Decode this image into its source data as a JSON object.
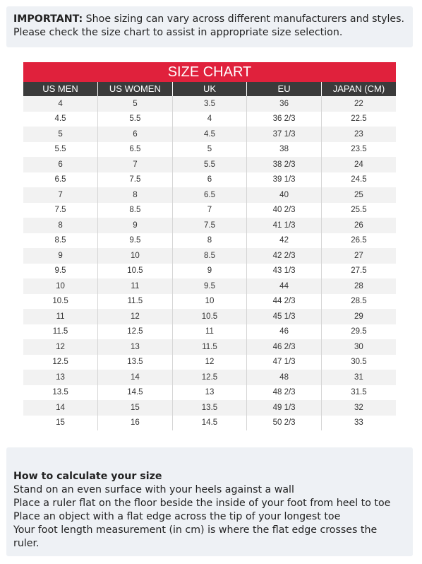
{
  "notice": {
    "lead": "IMPORTANT:",
    "text": " Shoe sizing can vary across different manufacturers and styles. Please check the size chart to assist in appropriate size selection."
  },
  "chart": {
    "title": "SIZE CHART",
    "accent_color": "#e0213c",
    "header_color": "#3b3b3b",
    "columns": [
      "US MEN",
      "US WOMEN",
      "UK",
      "EU",
      "JAPAN (CM)"
    ],
    "rows": [
      [
        "4",
        "5",
        "3.5",
        "36",
        "22"
      ],
      [
        "4.5",
        "5.5",
        "4",
        "36 2/3",
        "22.5"
      ],
      [
        "5",
        "6",
        "4.5",
        "37 1/3",
        "23"
      ],
      [
        "5.5",
        "6.5",
        "5",
        "38",
        "23.5"
      ],
      [
        "6",
        "7",
        "5.5",
        "38 2/3",
        "24"
      ],
      [
        "6.5",
        "7.5",
        "6",
        "39 1/3",
        "24.5"
      ],
      [
        "7",
        "8",
        "6.5",
        "40",
        "25"
      ],
      [
        "7.5",
        "8.5",
        "7",
        "40 2/3",
        "25.5"
      ],
      [
        "8",
        "9",
        "7.5",
        "41 1/3",
        "26"
      ],
      [
        "8.5",
        "9.5",
        "8",
        "42",
        "26.5"
      ],
      [
        "9",
        "10",
        "8.5",
        "42 2/3",
        "27"
      ],
      [
        "9.5",
        "10.5",
        "9",
        "43 1/3",
        "27.5"
      ],
      [
        "10",
        "11",
        "9.5",
        "44",
        "28"
      ],
      [
        "10.5",
        "11.5",
        "10",
        "44 2/3",
        "28.5"
      ],
      [
        "11",
        "12",
        "10.5",
        "45 1/3",
        "29"
      ],
      [
        "11.5",
        "12.5",
        "11",
        "46",
        "29.5"
      ],
      [
        "12",
        "13",
        "11.5",
        "46 2/3",
        "30"
      ],
      [
        "12.5",
        "13.5",
        "12",
        "47 1/3",
        "30.5"
      ],
      [
        "13",
        "14",
        "12.5",
        "48",
        "31"
      ],
      [
        "13.5",
        "14.5",
        "13",
        "48 2/3",
        "31.5"
      ],
      [
        "14",
        "15",
        "13.5",
        "49 1/3",
        "32"
      ],
      [
        "15",
        "16",
        "14.5",
        "50 2/3",
        "33"
      ]
    ]
  },
  "howto": {
    "heading": "How to calculate your size",
    "steps": [
      "Stand on an even surface with your heels against a wall",
      "Place a ruler flat on the floor beside the inside of your foot from heel to toe",
      "Place an object with a flat edge across the tip of your longest toe",
      "Your foot length measurement (in cm) is where the flat edge crosses the ruler."
    ]
  }
}
